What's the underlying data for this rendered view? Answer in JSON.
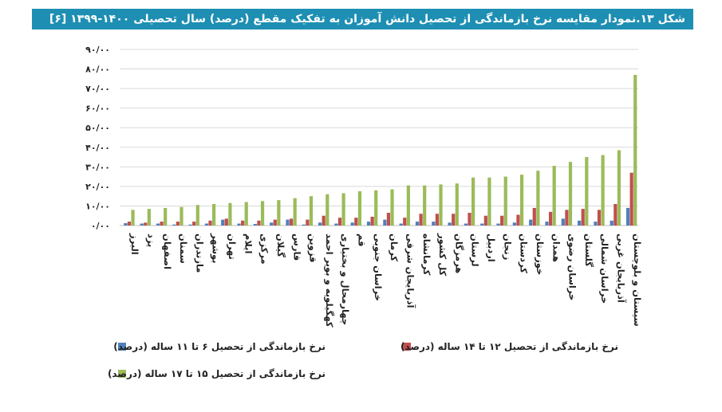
{
  "title": "شکل ۱۳.نمودار مقایسه نرخ بازماندگی از تحصیل دانش آموزان به تفکیک مقطع (درصد) سال تحصیلی ۱۴۰۰-۱۳۹۹ [۶]",
  "colors": {
    "series1": "#4f81bd",
    "series2": "#c0504d",
    "series3": "#9bbb59",
    "title_bg": "#1e8fb3"
  },
  "chart_data": {
    "type": "bar",
    "categories": [
      "البرز",
      "یزد",
      "اصفهان",
      "سمنان",
      "مازندران",
      "بوشهر",
      "تهران",
      "ایلام",
      "مرکزی",
      "گیلان",
      "فارس",
      "قزوین",
      "کهگیلویه و بویر احمد",
      "چهارمحال و بختیاری",
      "قم",
      "خراسان جنوبی",
      "کرمان",
      "آذربایجان شرقی",
      "کرمانشاه",
      "کل کشور",
      "هرمزگان",
      "لرستان",
      "اردبیل",
      "زنجان",
      "کردستان",
      "خوزستان",
      "همدان",
      "خراسان رضوی",
      "گلستان",
      "خراسان شمالی",
      "آذربایجان غربی",
      "سیستان و بلوچستان"
    ],
    "series": [
      {
        "name": "نرخ بازماندگی از تحصیل ۶ تا ۱۱ ساله (درصد)",
        "values": [
          1.2,
          1.0,
          1.0,
          0.5,
          0.5,
          1.0,
          3.0,
          1.0,
          0.8,
          1.5,
          3.0,
          0.5,
          1.5,
          1.0,
          1.5,
          2.0,
          3.0,
          1.0,
          2.0,
          2.0,
          1.5,
          1.0,
          1.0,
          1.0,
          1.5,
          3.0,
          2.0,
          3.5,
          2.5,
          2.0,
          2.5,
          9.0
        ]
      },
      {
        "name": "نرخ بازماندگی از تحصیل ۱۲ تا ۱۴ ساله (درصد)",
        "values": [
          2.0,
          1.5,
          2.0,
          2.0,
          2.0,
          2.5,
          3.5,
          2.5,
          2.5,
          3.0,
          3.5,
          3.0,
          5.0,
          4.0,
          4.0,
          4.5,
          6.5,
          4.0,
          6.0,
          6.0,
          6.0,
          6.5,
          5.0,
          5.0,
          5.5,
          9.0,
          7.0,
          8.0,
          8.5,
          8.0,
          11.0,
          27.0
        ]
      },
      {
        "name": "نرخ بازماندگی از تحصیل ۱۵ تا ۱۷ ساله (درصد)",
        "values": [
          8.0,
          8.5,
          9.0,
          9.5,
          10.5,
          11.0,
          11.5,
          12.0,
          12.5,
          13.0,
          14.0,
          15.0,
          16.0,
          16.5,
          17.5,
          18.0,
          18.5,
          20.5,
          20.5,
          21.0,
          21.5,
          24.5,
          24.5,
          25.0,
          26.0,
          28.0,
          30.5,
          32.5,
          35.0,
          36.0,
          38.5,
          77.0
        ]
      }
    ],
    "ylim": [
      0,
      90
    ],
    "yticks": [
      "۰/۰۰",
      "۱۰/۰۰",
      "۲۰/۰۰",
      "۳۰/۰۰",
      "۴۰/۰۰",
      "۵۰/۰۰",
      "۶۰/۰۰",
      "۷۰/۰۰",
      "۸۰/۰۰",
      "۹۰/۰۰"
    ],
    "grid": true,
    "legend_position": "bottom"
  }
}
